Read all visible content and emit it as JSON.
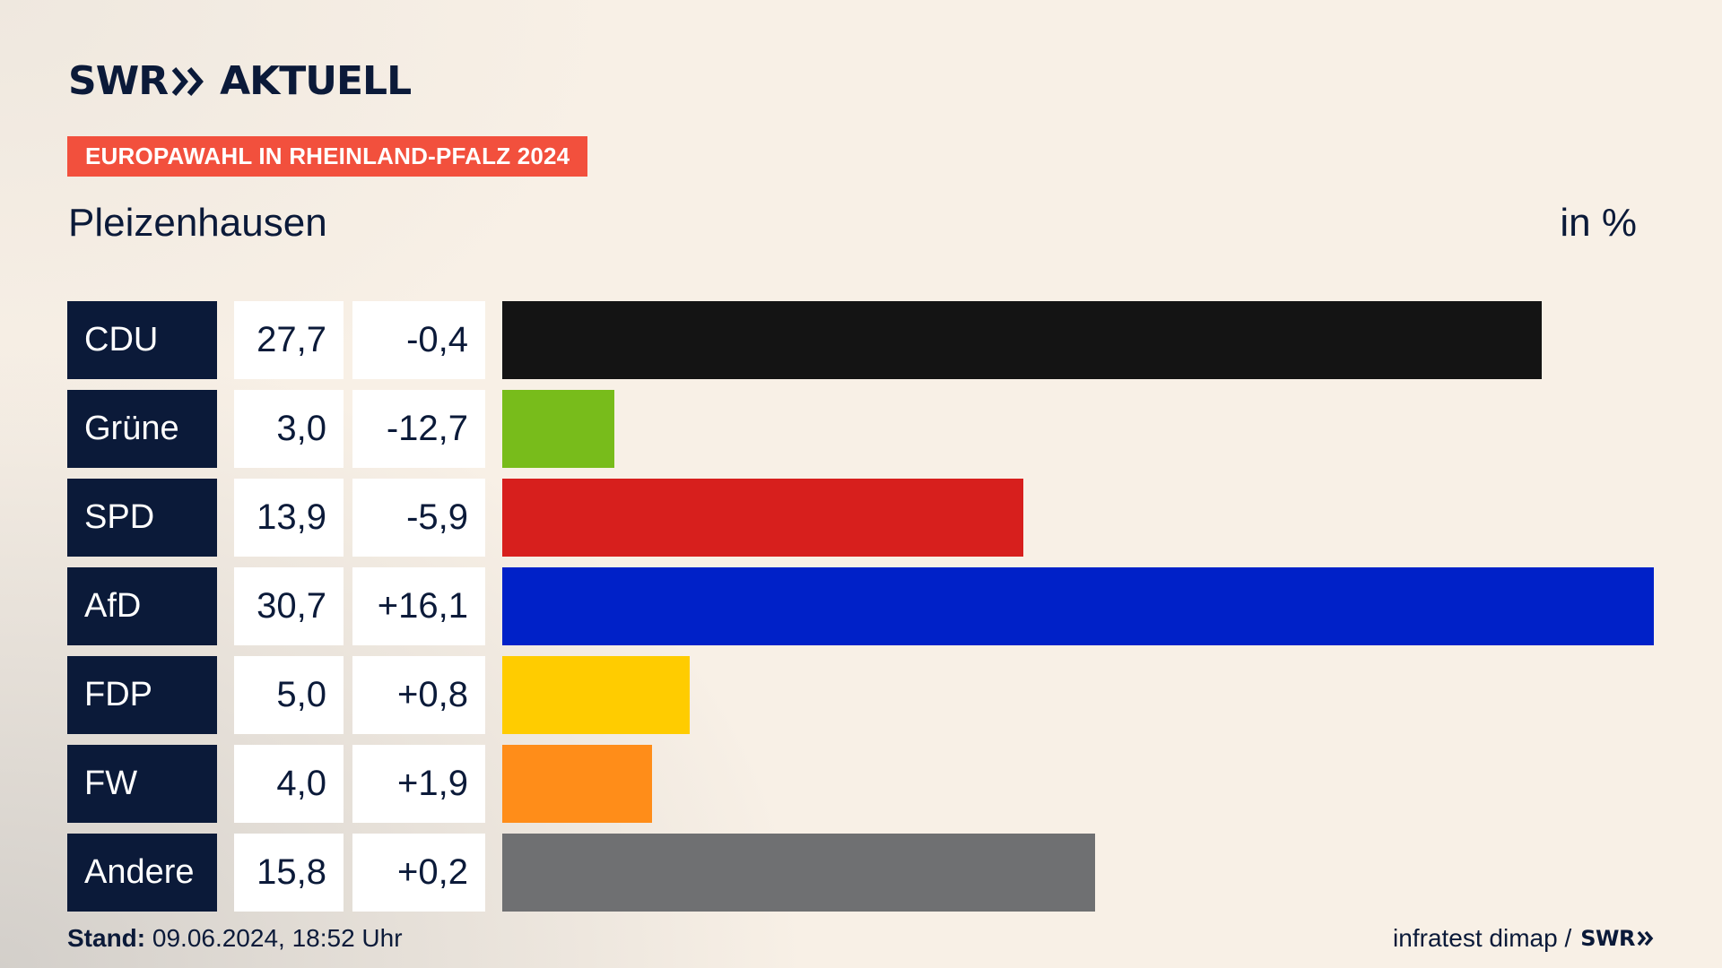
{
  "header": {
    "logo_brand": "SWR",
    "logo_product": "AKTUELL",
    "tag": "EUROPAWAHL IN RHEINLAND-PFALZ 2024",
    "place": "Pleizenhausen",
    "unit": "in %"
  },
  "chart_data": {
    "type": "bar",
    "orientation": "horizontal",
    "categories": [
      "CDU",
      "Grüne",
      "SPD",
      "AfD",
      "FDP",
      "FW",
      "Andere"
    ],
    "series": [
      {
        "values": [
          27.7,
          3.0,
          13.9,
          30.7,
          5.0,
          4.0,
          15.8
        ]
      }
    ],
    "value_labels": [
      "27,7",
      "3,0",
      "13,9",
      "30,7",
      "5,0",
      "4,0",
      "15,8"
    ],
    "diff_values": [
      -0.4,
      -12.7,
      -5.9,
      16.1,
      0.8,
      1.9,
      0.2
    ],
    "diff_labels": [
      "-0,4",
      "-12,7",
      "-5,9",
      "+16,1",
      "+0,8",
      "+1,9",
      "+0,2"
    ],
    "colors": [
      "#141414",
      "#78bc1b",
      "#d71f1d",
      "#0021c8",
      "#ffcc00",
      "#ff8d19",
      "#6f7072"
    ],
    "xlim": [
      0,
      30.7
    ],
    "title": "Pleizenhausen",
    "unit": "in %",
    "grid": false,
    "legend": "none"
  },
  "footer": {
    "stand_label": "Stand:",
    "stand_value": " 09.06.2024, 18:52 Uhr",
    "source": "infratest dimap /",
    "source_logo": "SWR"
  }
}
